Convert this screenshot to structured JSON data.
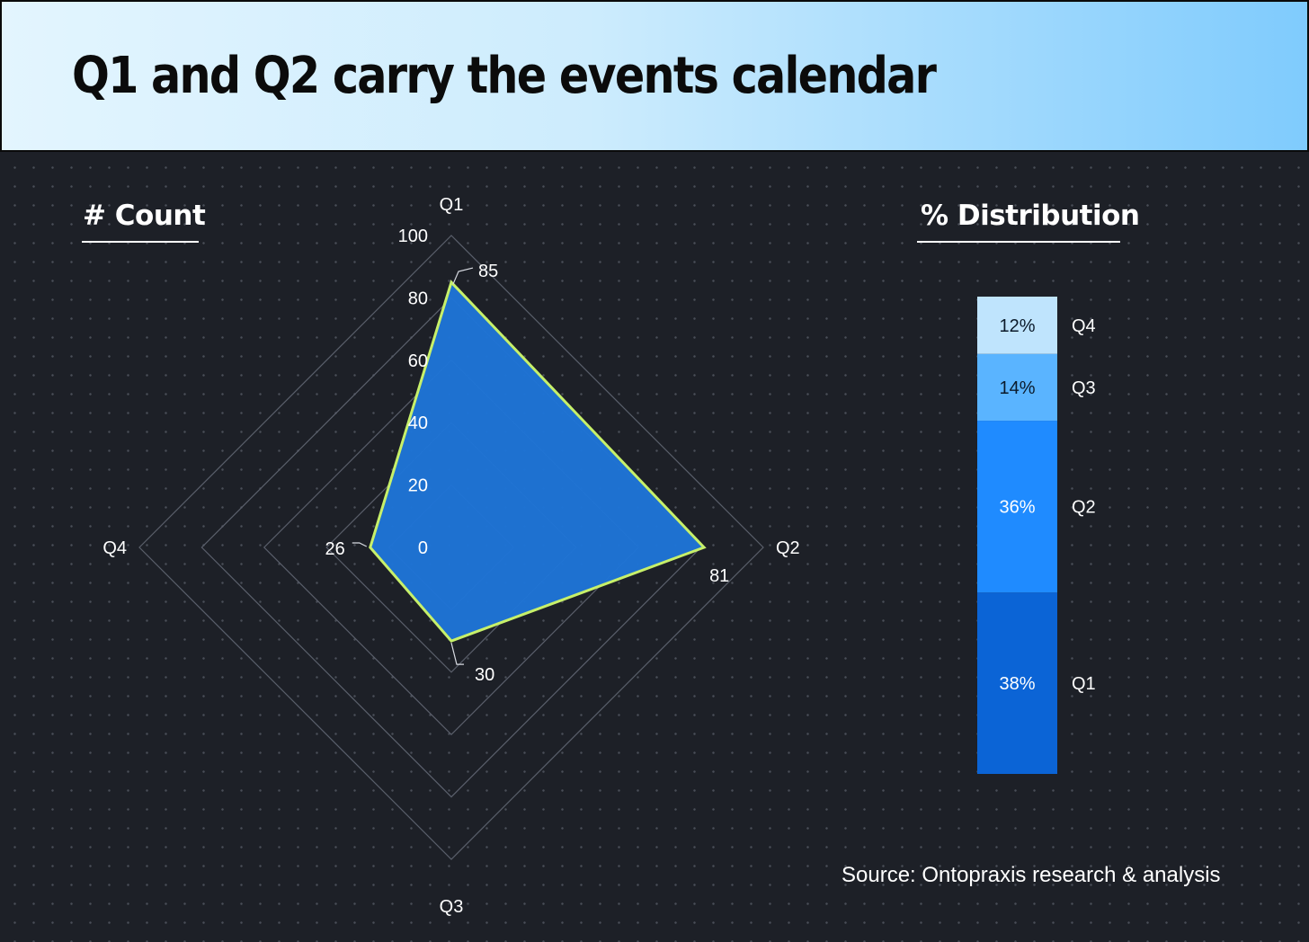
{
  "header": {
    "title": "Q1 and Q2 carry the events calendar"
  },
  "sections": {
    "count_title": "# Count",
    "distribution_title": "% Distribution"
  },
  "source": "Source: Ontopraxis research & analysis",
  "colors": {
    "polygon_fill": "#1e74d6",
    "polygon_stroke": "#c7f06a",
    "grid": "#5a5f6b",
    "q1_segment": "#0b64d6",
    "q2_segment": "#1f8bff",
    "q3_segment": "#5ab4ff",
    "q4_segment": "#bfe4fd"
  },
  "chart_data": [
    {
      "type": "radar",
      "categories": [
        "Q1",
        "Q2",
        "Q3",
        "Q4"
      ],
      "values": [
        85,
        81,
        30,
        26
      ],
      "value_labels": [
        "85",
        "81",
        "30",
        "26"
      ],
      "rlim": [
        0,
        100
      ],
      "r_ticks": [
        "0",
        "20",
        "40",
        "60",
        "80",
        "100"
      ],
      "grid": true
    },
    {
      "type": "stacked-bar",
      "categories": [
        "Q1",
        "Q2",
        "Q3",
        "Q4"
      ],
      "values": [
        38,
        36,
        14,
        12
      ],
      "value_labels": [
        "38%",
        "36%",
        "14%",
        "12%"
      ]
    }
  ]
}
